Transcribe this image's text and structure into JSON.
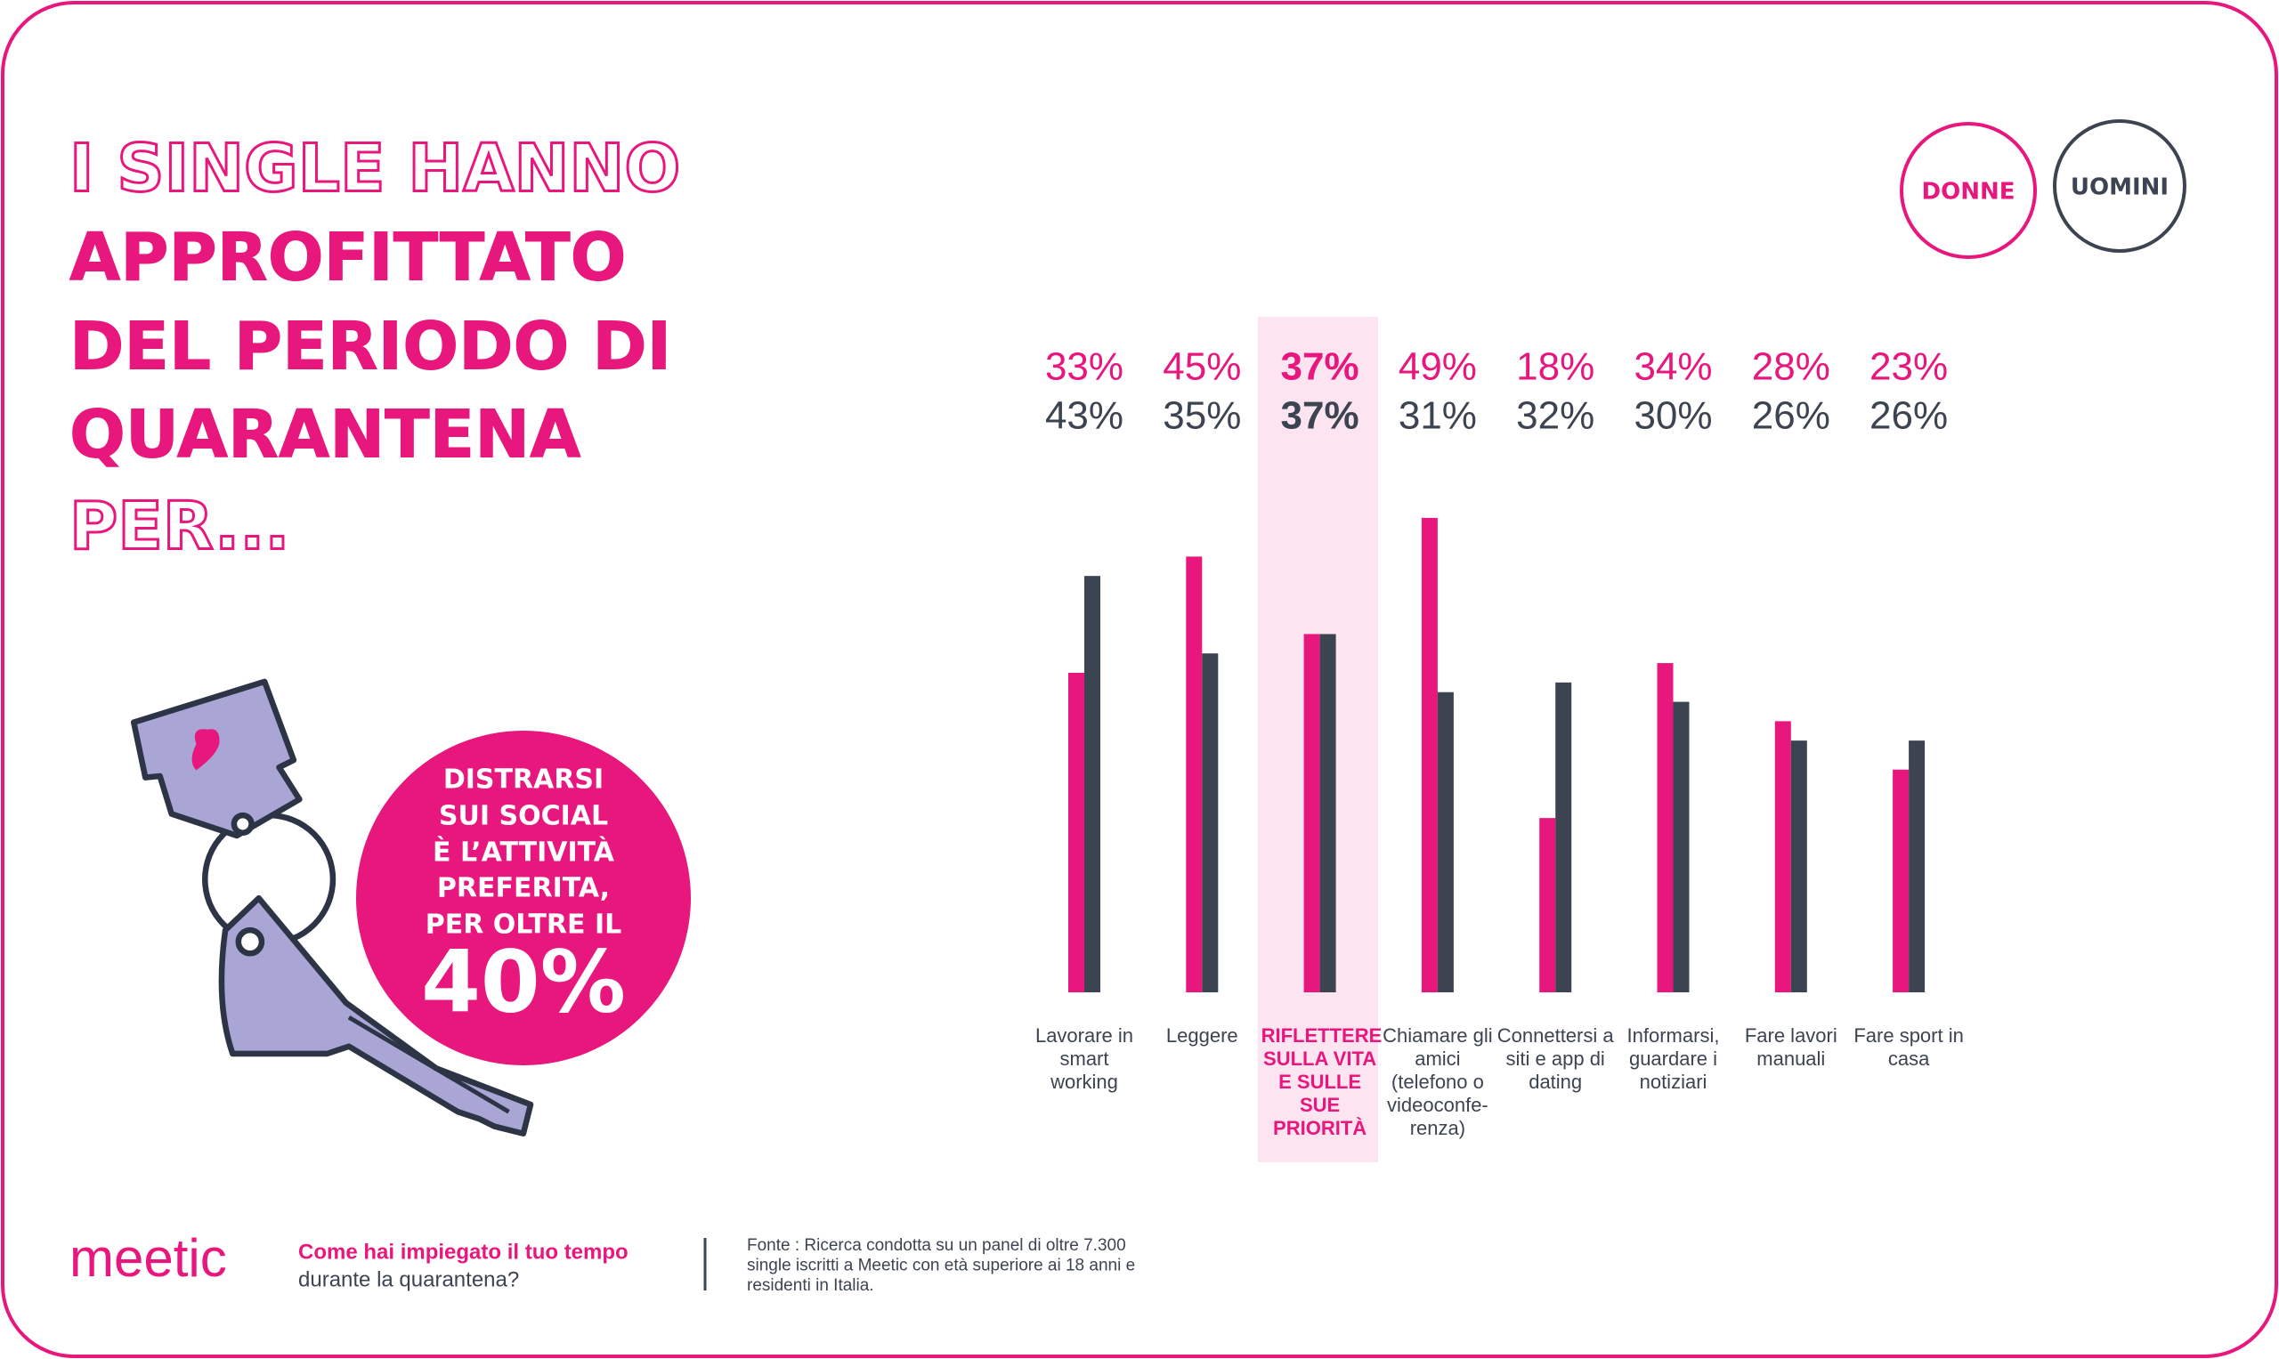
{
  "header": {
    "title_lines": [
      {
        "text": "I SINGLE HANNO",
        "style": "outline"
      },
      {
        "text": "APPROFITTATO",
        "style": "solid"
      },
      {
        "text": "DEL PERIODO DI",
        "style": "solid"
      },
      {
        "text": "QUARANTENA",
        "style": "solid"
      },
      {
        "text": "PER...",
        "style": "outline"
      }
    ]
  },
  "callout": {
    "lines": [
      "DISTRARSI",
      "SUI SOCIAL",
      "È L’ATTIVITÀ",
      "PREFERITA,",
      "PER OLTRE IL"
    ],
    "figure": "40%"
  },
  "chart_data": {
    "type": "bar",
    "categories": [
      "Lavorare in smart working",
      "Leggere",
      "RIFLETTERE SULLA VITA E SULLE SUE PRIORITÀ",
      "Chiamare gli amici (telefono o videoconfe-renza)",
      "Connettersi a siti e app di dating",
      "Informarsi, guardare i notiziari",
      "Fare lavori manuali",
      "Fare sport in casa"
    ],
    "highlight_category": 2,
    "series": [
      {
        "name": "DONNE",
        "color": "#e8177d",
        "values": [
          33,
          45,
          37,
          49,
          18,
          34,
          28,
          23
        ],
        "value_labels": [
          "33%",
          "45%",
          "37%",
          "49%",
          "18%",
          "34%",
          "28%",
          "23%"
        ]
      },
      {
        "name": "UOMINI",
        "color": "#3d4451",
        "values": [
          43,
          35,
          37,
          31,
          32,
          30,
          26,
          26
        ],
        "value_labels": [
          "43%",
          "35%",
          "37%",
          "31%",
          "32%",
          "30%",
          "26%",
          "26%"
        ]
      }
    ]
  },
  "footer": {
    "logo": "meetic",
    "question": [
      "Come hai impiegato il tuo tempo",
      "durante la quarantena?"
    ],
    "source": [
      "Fonte : Ricerca condotta su un panel di oltre 7.300",
      "single iscritti a Meetic con età superiore ai 18 anni e",
      "residenti in Italia."
    ]
  }
}
